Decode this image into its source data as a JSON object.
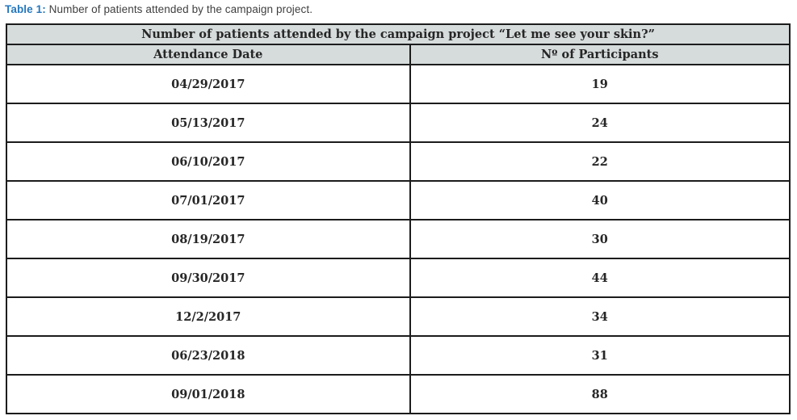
{
  "caption": {
    "label": "Table 1:",
    "text": " Number of patients attended by the campaign project."
  },
  "table": {
    "title": "Number of patients attended by the campaign project “Let me see your skin?”",
    "columns": [
      "Attendance Date",
      "Nº of Participants"
    ],
    "rows": [
      {
        "date": "04/29/2017",
        "participants": "19"
      },
      {
        "date": "05/13/2017",
        "participants": "24"
      },
      {
        "date": "06/10/2017",
        "participants": "22"
      },
      {
        "date": "07/01/2017",
        "participants": "40"
      },
      {
        "date": "08/19/2017",
        "participants": "30"
      },
      {
        "date": "09/30/2017",
        "participants": "44"
      },
      {
        "date": "12/2/2017",
        "participants": "34"
      },
      {
        "date": "06/23/2018",
        "participants": "31"
      },
      {
        "date": "09/01/2018",
        "participants": "88"
      }
    ]
  },
  "colors": {
    "caption_blue": "#2577be",
    "header_fill": "#d6dbdb",
    "border": "#1c1c1c",
    "text": "#262626"
  }
}
